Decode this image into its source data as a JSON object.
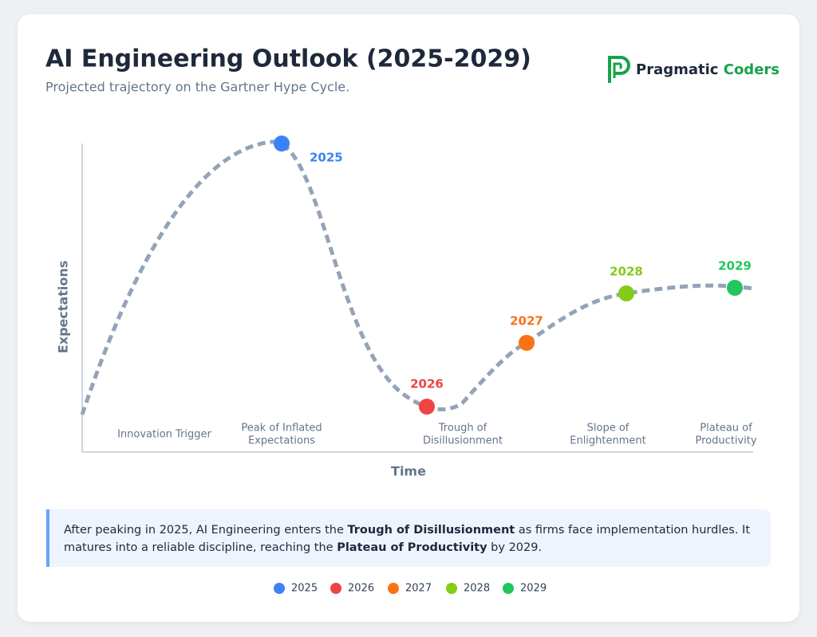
{
  "header": {
    "title": "AI Engineering Outlook (2025-2029)",
    "subtitle": "Projected trajectory on the Gartner Hype Cycle."
  },
  "brand": {
    "name": "Pragmatic",
    "name_accent": "Coders",
    "accent_color": "#16a34a"
  },
  "chart": {
    "y_label": "Expectations",
    "x_label": "Time",
    "phases": [
      [
        "Innovation Trigger"
      ],
      [
        "Peak of Inflated",
        "Expectations"
      ],
      [
        "Trough of",
        "Disillusionment"
      ],
      [
        "Slope of",
        "Enlightenment"
      ],
      [
        "Plateau of",
        "Productivity"
      ]
    ],
    "milestones": [
      {
        "label": "2025",
        "color": "#3b82f6"
      },
      {
        "label": "2026",
        "color": "#ef4444"
      },
      {
        "label": "2027",
        "color": "#f97316"
      },
      {
        "label": "2028",
        "color": "#84cc16"
      },
      {
        "label": "2029",
        "color": "#22c55e"
      }
    ]
  },
  "summary": {
    "segments": [
      {
        "text": "After peaking in 2025, AI Engineering enters the ",
        "bold": false
      },
      {
        "text": "Trough of Disillusionment",
        "bold": true
      },
      {
        "text": " as firms face implementation hurdles. It matures into a reliable discipline, reaching the ",
        "bold": false
      },
      {
        "text": "Plateau of Productivity",
        "bold": true
      },
      {
        "text": " by 2029.",
        "bold": false
      }
    ]
  }
}
